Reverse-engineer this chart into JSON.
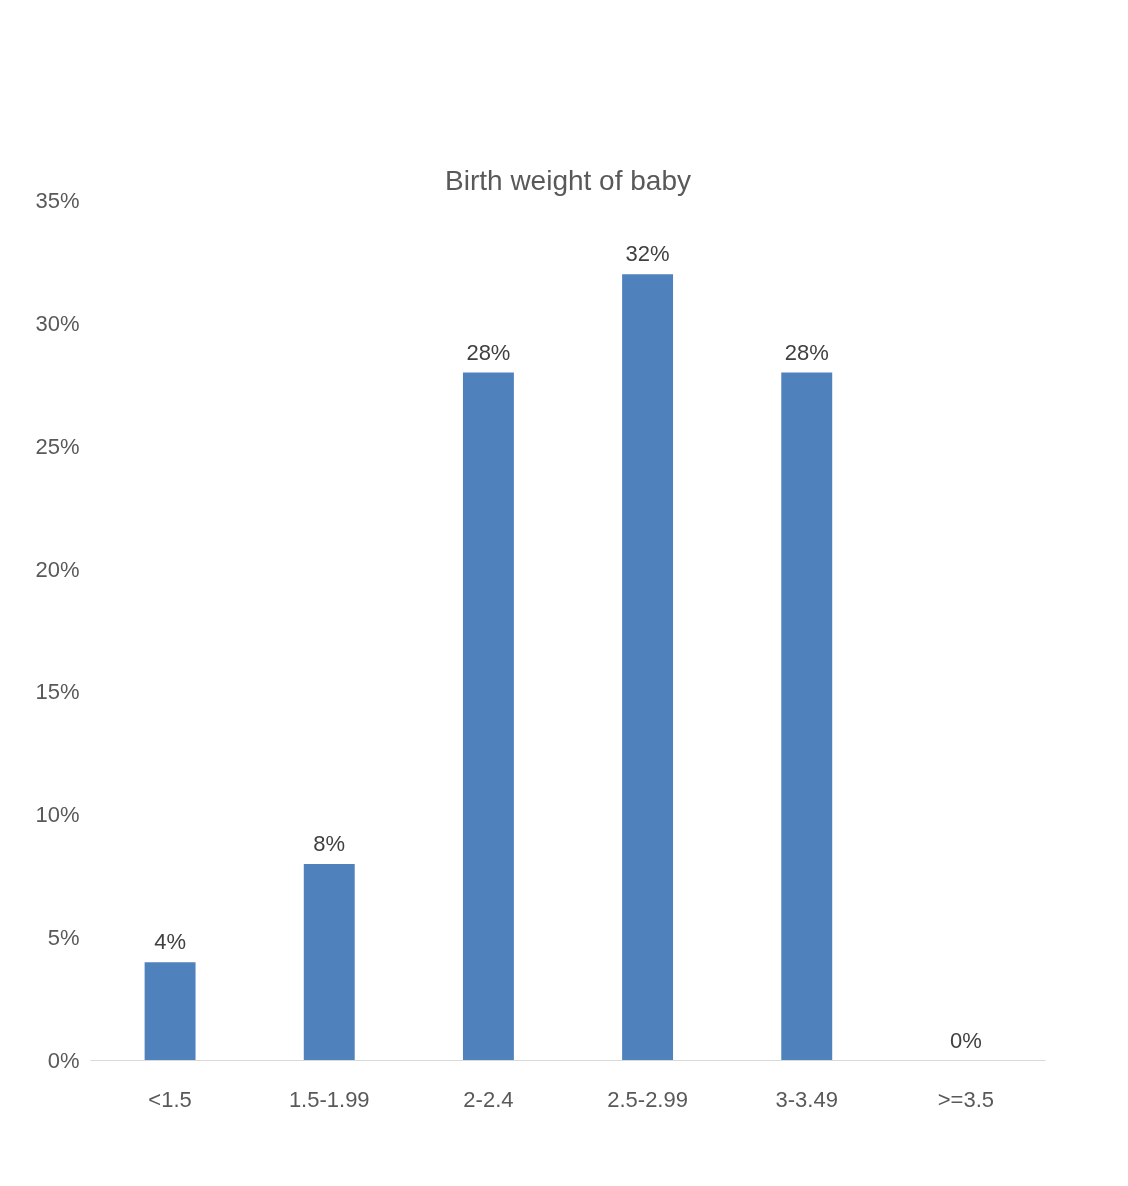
{
  "chart_data": {
    "type": "bar",
    "title": "Birth weight of baby",
    "categories": [
      "<1.5",
      "1.5-1.99",
      "2-2.4",
      "2.5-2.99",
      "3-3.49",
      ">=3.5"
    ],
    "values": [
      4,
      8,
      28,
      32,
      28,
      0
    ],
    "value_labels": [
      "4%",
      "8%",
      "28%",
      "32%",
      "28%",
      "0%"
    ],
    "color": "#4f81bd",
    "ylim": [
      0,
      35
    ],
    "yticks": [
      {
        "value": 0,
        "label": "0%"
      },
      {
        "value": 5,
        "label": "5%"
      },
      {
        "value": 10,
        "label": "10%"
      },
      {
        "value": 15,
        "label": "15%"
      },
      {
        "value": 20,
        "label": "20%"
      },
      {
        "value": 25,
        "label": "25%"
      },
      {
        "value": 30,
        "label": "30%"
      },
      {
        "value": 35,
        "label": "35%"
      }
    ],
    "grid": false
  }
}
